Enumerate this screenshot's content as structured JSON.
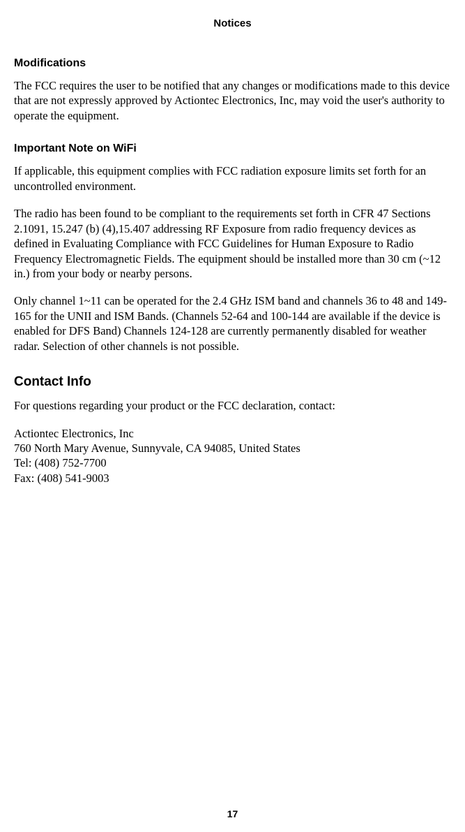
{
  "header": {
    "title": "Notices"
  },
  "sections": {
    "modifications": {
      "heading": "Modifications",
      "body": "The FCC requires the user to be notified that any changes or modifications made to this device that are not expressly approved by Actiontec Electronics, Inc, may void the user's authority to operate the equipment."
    },
    "wifi_note": {
      "heading": "Important Note on WiFi",
      "para1": "If applicable, this equipment complies with FCC radiation exposure limits set forth for an uncontrolled environment.",
      "para2": "The radio has been found to be compliant to the requirements set forth in CFR 47 Sections 2.1091, 15.247 (b) (4),15.407 addressing RF Exposure from radio frequency devices as defined in Evaluating Compliance with FCC Guidelines for Human Exposure to Radio Frequency Electromagnetic Fields. The equipment should be installed more than 30 cm (~12 in.) from your body or nearby persons.",
      "para3": "Only channel 1~11 can be operated for the 2.4 GHz ISM band and channels 36 to 48 and 149-165 for the UNII and ISM Bands. (Channels 52-64 and 100-144 are available if the device is enabled for DFS Band) Channels 124-128 are currently permanently disabled for weather radar. Selection of other channels is not possible."
    },
    "contact": {
      "heading": "Contact Info",
      "intro": "For questions regarding your product or the FCC declaration, contact:",
      "company": "Actiontec Electronics, Inc",
      "address": "760 North Mary Avenue, Sunnyvale, CA 94085, United States",
      "tel": "Tel: (408) 752-7700",
      "fax": "Fax: (408) 541-9003"
    }
  },
  "footer": {
    "page_number": "17"
  }
}
